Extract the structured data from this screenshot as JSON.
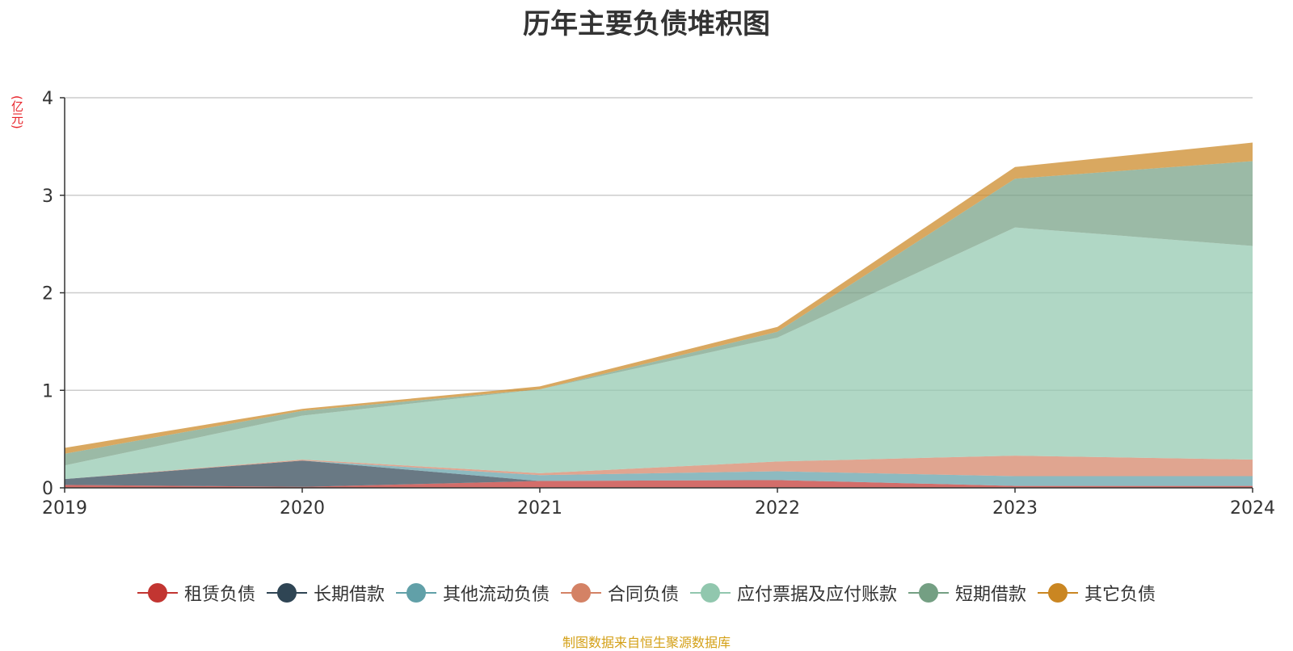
{
  "title": "历年主要负债堆积图",
  "unit_label": "(亿元)",
  "source_note": "制图数据来自恒生聚源数据库",
  "chart_data": {
    "type": "area",
    "stacked": true,
    "title": "历年主要负债堆积图",
    "ylabel": "(亿元)",
    "x": [
      "2019",
      "2020",
      "2021",
      "2022",
      "2023",
      "2024"
    ],
    "ylim": [
      0,
      4
    ],
    "yticks": [
      "0",
      "1",
      "2",
      "3",
      "4"
    ],
    "grid": true,
    "legend_position": "bottom",
    "series": [
      {
        "name": "租赁负债",
        "color": "#c23531",
        "values": [
          0.03,
          0.01,
          0.07,
          0.08,
          0.02,
          0.02
        ]
      },
      {
        "name": "长期借款",
        "color": "#2f4554",
        "values": [
          0.06,
          0.27,
          0.0,
          0.0,
          0.0,
          0.0
        ]
      },
      {
        "name": "其他流动负债",
        "color": "#61a0a8",
        "values": [
          0.0,
          0.0,
          0.06,
          0.09,
          0.1,
          0.1
        ]
      },
      {
        "name": "合同负债",
        "color": "#d48265",
        "values": [
          0.0,
          0.01,
          0.02,
          0.1,
          0.21,
          0.17
        ]
      },
      {
        "name": "应付票据及应付账款",
        "color": "#91c7ae",
        "values": [
          0.14,
          0.45,
          0.86,
          1.27,
          2.34,
          2.19
        ]
      },
      {
        "name": "短期借款",
        "color": "#749f83",
        "values": [
          0.12,
          0.05,
          0.0,
          0.06,
          0.5,
          0.87
        ]
      },
      {
        "name": "其它负债",
        "color": "#ca8622",
        "values": [
          0.06,
          0.02,
          0.03,
          0.05,
          0.12,
          0.19
        ]
      }
    ]
  }
}
